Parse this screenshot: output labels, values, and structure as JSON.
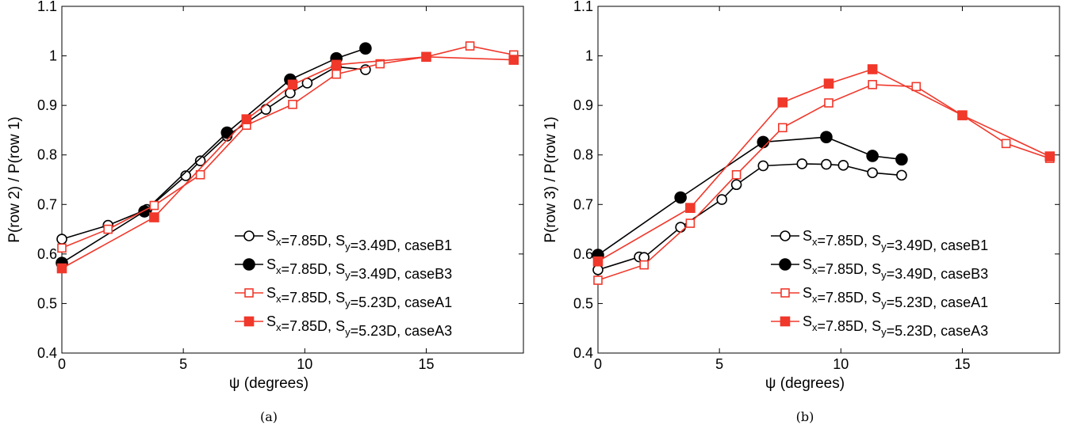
{
  "colors": {
    "black": "#000000",
    "red": "#f0382b"
  },
  "chart_data": [
    {
      "type": "line",
      "caption": "(a)",
      "xlabel": "ψ (degrees)",
      "ylabel": "P(row 2) / P(row 1)",
      "xlim": [
        0,
        19
      ],
      "ylim": [
        0.4,
        1.1
      ],
      "xticks": [
        "0",
        "5",
        "10",
        "15"
      ],
      "yticks": [
        "0.4",
        "0.5",
        "0.6",
        "0.7",
        "0.8",
        "0.9",
        "1",
        "1.1"
      ],
      "legend_position": "bottom-right",
      "series": [
        {
          "name": "S_x=7.85D, S_y=3.49D, caseB1",
          "color": "#000000",
          "marker": "circle-open",
          "x": [
            0,
            1.9,
            3.5,
            5.1,
            5.7,
            6.8,
            8.4,
            9.4,
            10.1,
            11.3,
            12.5
          ],
          "y": [
            0.63,
            0.658,
            0.69,
            0.758,
            0.788,
            0.838,
            0.892,
            0.925,
            0.945,
            0.978,
            0.972
          ]
        },
        {
          "name": "S_x=7.85D, S_y=3.49D, caseB3",
          "color": "#000000",
          "marker": "circle-filled",
          "x": [
            0,
            3.4,
            6.8,
            9.4,
            11.3,
            12.5
          ],
          "y": [
            0.582,
            0.686,
            0.845,
            0.952,
            0.995,
            1.015
          ]
        },
        {
          "name": "S_x=7.85D, S_y=5.23D, caseA1",
          "color": "#f0382b",
          "marker": "square-open",
          "x": [
            0,
            1.9,
            3.8,
            5.7,
            7.6,
            9.5,
            11.3,
            13.1,
            15.0,
            16.8,
            18.6
          ],
          "y": [
            0.612,
            0.65,
            0.698,
            0.76,
            0.86,
            0.902,
            0.963,
            0.984,
            0.998,
            1.02,
            1.002
          ]
        },
        {
          "name": "S_x=7.85D, S_y=5.23D, caseA3",
          "color": "#f0382b",
          "marker": "square-filled",
          "x": [
            0,
            3.8,
            7.6,
            9.5,
            11.3,
            15.0,
            18.6
          ],
          "y": [
            0.571,
            0.674,
            0.872,
            0.942,
            0.982,
            0.998,
            0.992
          ]
        }
      ]
    },
    {
      "type": "line",
      "caption": "(b)",
      "xlabel": "ψ (degrees)",
      "ylabel": "P(row 3) / P(row 1)",
      "xlim": [
        0,
        19
      ],
      "ylim": [
        0.4,
        1.1
      ],
      "xticks": [
        "0",
        "5",
        "10",
        "15"
      ],
      "yticks": [
        "0.4",
        "0.5",
        "0.6",
        "0.7",
        "0.8",
        "0.9",
        "1",
        "1.1"
      ],
      "legend_position": "bottom-right",
      "series": [
        {
          "name": "S_x=7.85D, S_y=3.49D, caseB1",
          "color": "#000000",
          "marker": "circle-open",
          "x": [
            0,
            1.7,
            1.9,
            3.4,
            5.1,
            5.7,
            6.8,
            8.4,
            9.4,
            10.1,
            11.3,
            12.5
          ],
          "y": [
            0.568,
            0.594,
            0.593,
            0.654,
            0.71,
            0.74,
            0.778,
            0.782,
            0.781,
            0.779,
            0.764,
            0.759
          ]
        },
        {
          "name": "S_x=7.85D, S_y=3.49D, caseB3",
          "color": "#000000",
          "marker": "circle-filled",
          "x": [
            0,
            3.4,
            6.8,
            9.4,
            11.3,
            12.5
          ],
          "y": [
            0.598,
            0.714,
            0.826,
            0.836,
            0.798,
            0.791
          ]
        },
        {
          "name": "S_x=7.85D, S_y=5.23D, caseA1",
          "color": "#f0382b",
          "marker": "square-open",
          "x": [
            0,
            1.9,
            3.8,
            5.7,
            7.6,
            9.5,
            11.3,
            13.1,
            15.0,
            16.8,
            18.6
          ],
          "y": [
            0.547,
            0.578,
            0.662,
            0.76,
            0.855,
            0.905,
            0.942,
            0.938,
            0.88,
            0.823,
            0.793
          ]
        },
        {
          "name": "S_x=7.85D, S_y=5.23D, caseA3",
          "color": "#f0382b",
          "marker": "square-filled",
          "x": [
            0,
            3.8,
            7.6,
            9.5,
            11.3,
            15.0,
            18.6
          ],
          "y": [
            0.585,
            0.693,
            0.906,
            0.944,
            0.973,
            0.88,
            0.797
          ]
        }
      ]
    }
  ]
}
